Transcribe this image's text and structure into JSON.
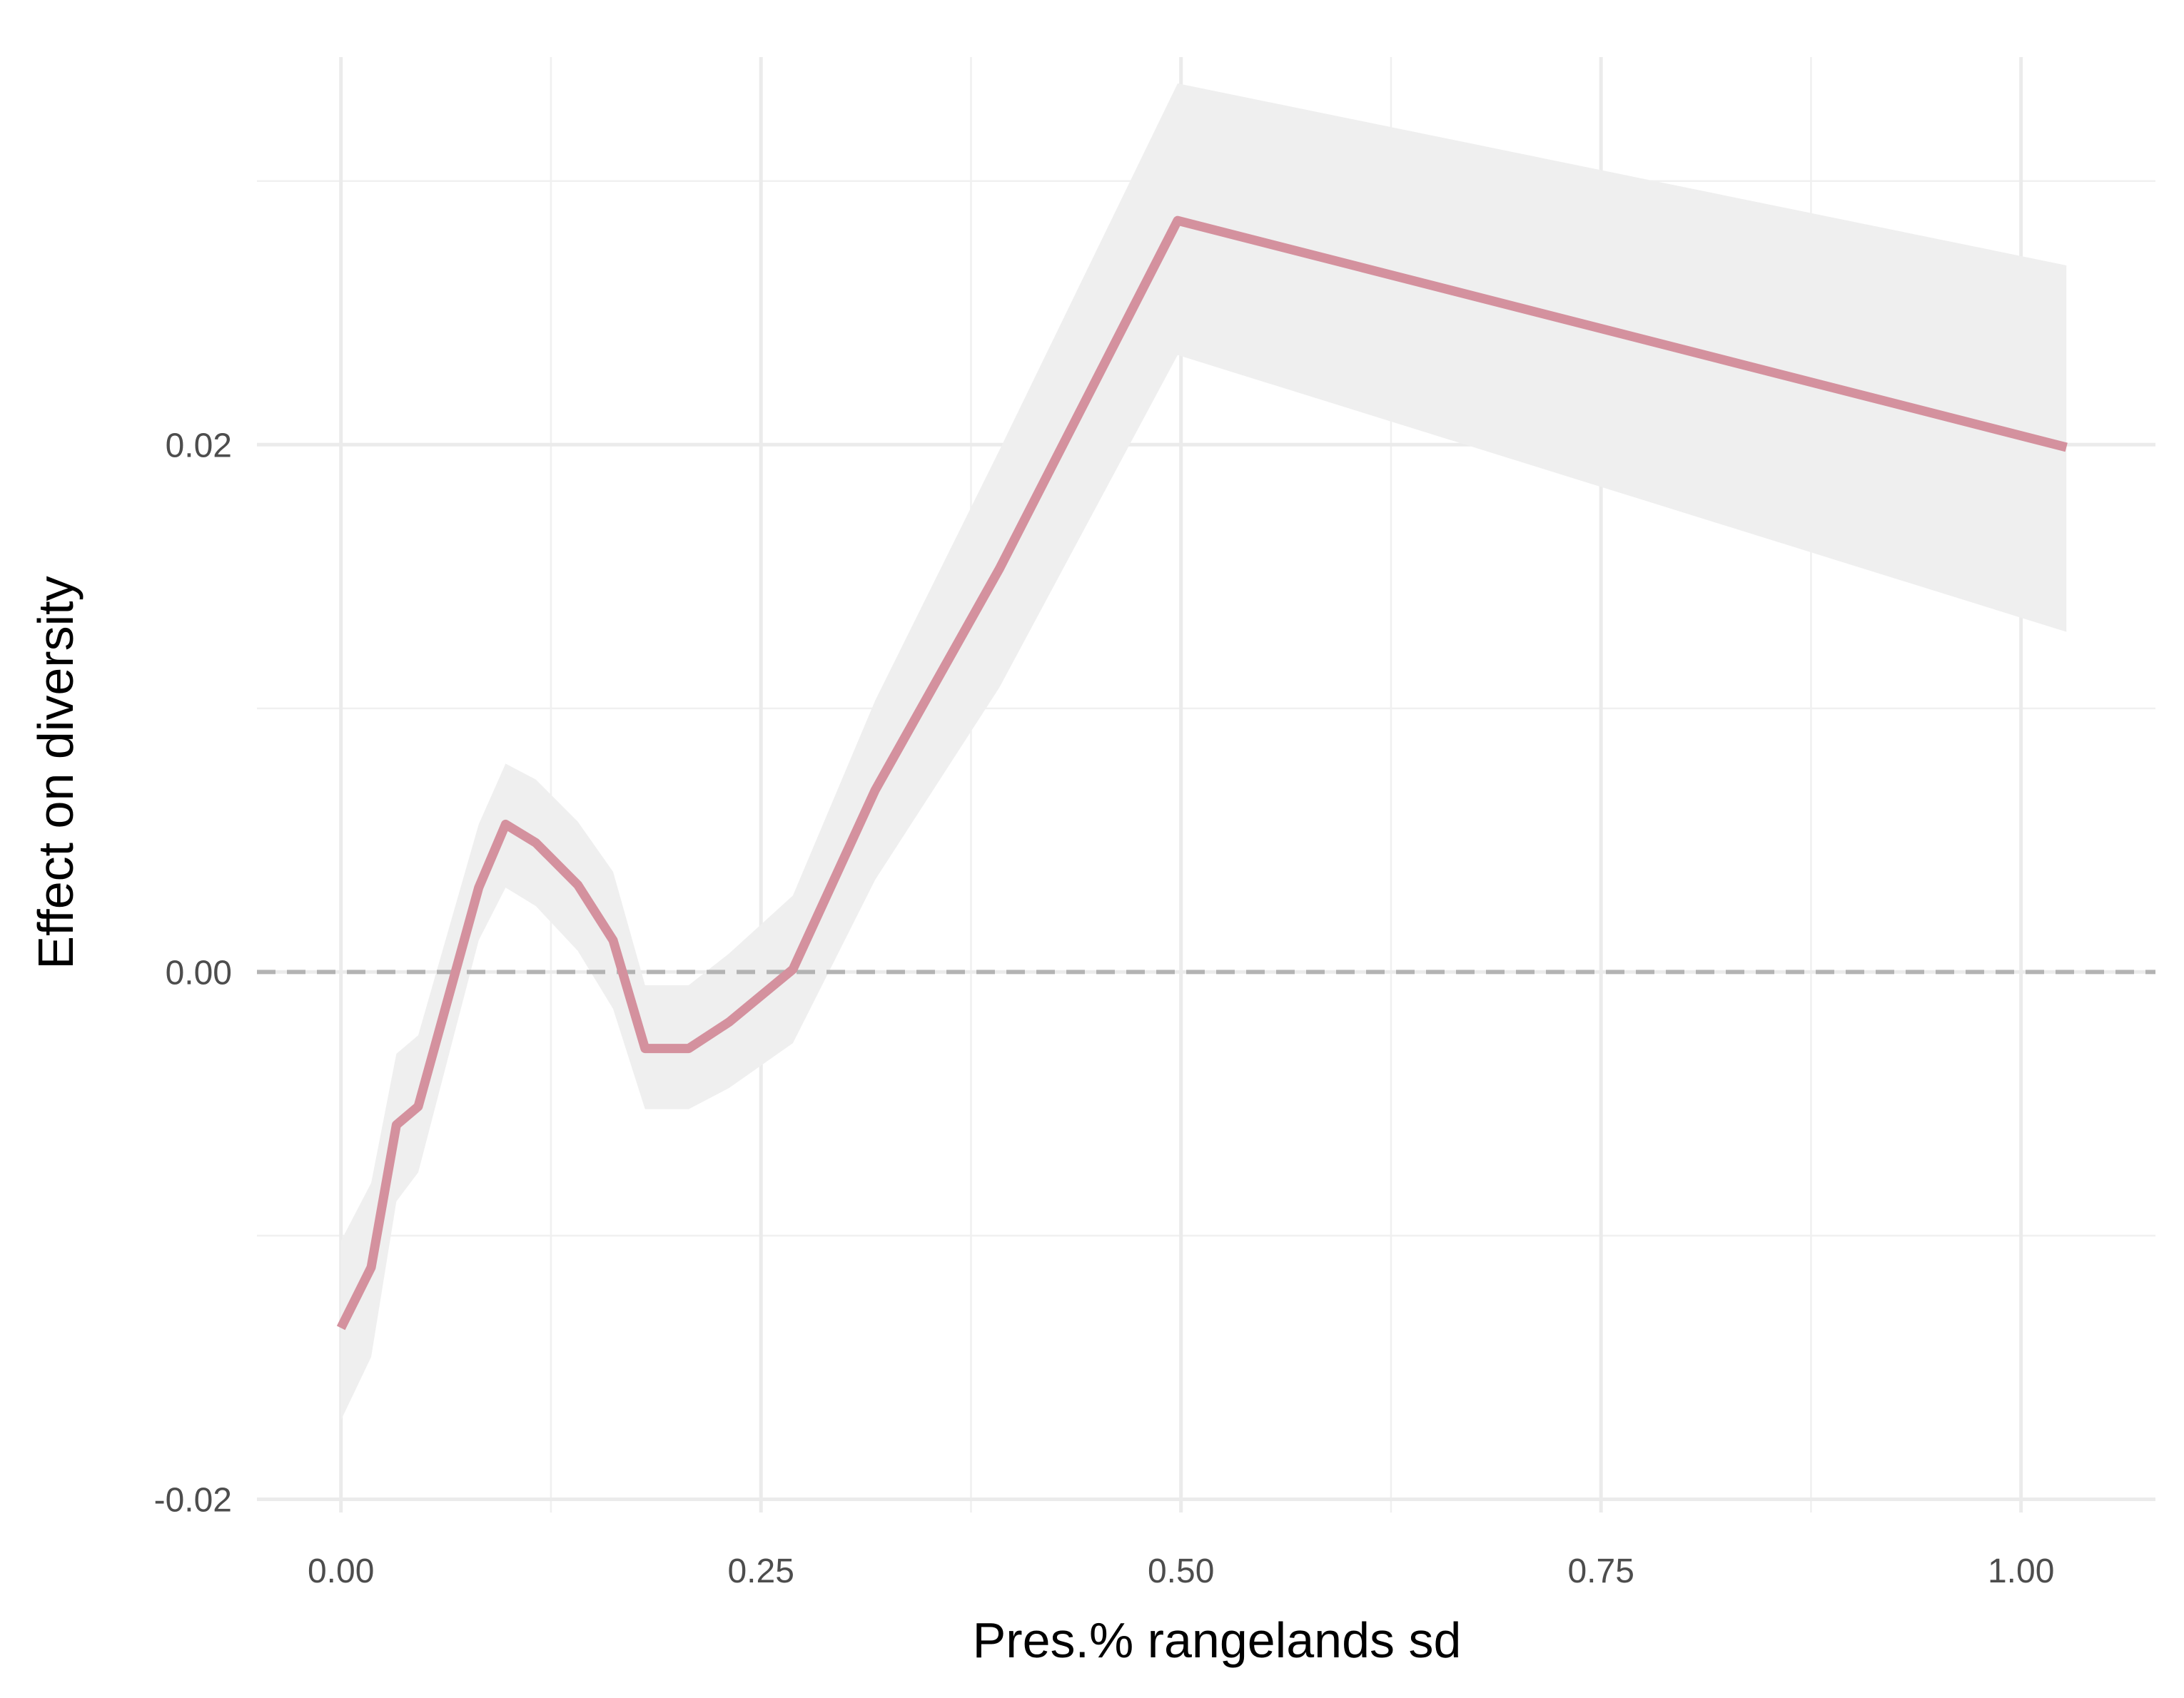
{
  "chart_data": {
    "type": "line",
    "title": "",
    "xlabel": "Pres.% rangelands sd",
    "ylabel": "Effect on diversity",
    "xlim": [
      -0.05,
      1.08
    ],
    "ylim": [
      -0.0205,
      0.0347
    ],
    "x_ticks": [
      0.0,
      0.25,
      0.5,
      0.75,
      1.0
    ],
    "x_tick_labels": [
      "0.00",
      "0.25",
      "0.50",
      "0.75",
      "1.00"
    ],
    "x_minor_ticks": [
      0.125,
      0.375,
      0.625,
      0.875
    ],
    "y_ticks": [
      -0.02,
      0.0,
      0.02
    ],
    "y_tick_labels": [
      "-0.02",
      "0.00",
      "0.02"
    ],
    "y_minor_ticks": [
      -0.01,
      0.01,
      0.03
    ],
    "grid": true,
    "legend": "none",
    "reference_line": {
      "y": 0,
      "style": "dashed",
      "color": "#b3b3b3"
    },
    "series": [
      {
        "color": "#d4919e",
        "ribbon_color": "#efefef",
        "x": [
          0.0,
          0.018,
          0.033,
          0.046,
          0.082,
          0.098,
          0.116,
          0.141,
          0.162,
          0.181,
          0.207,
          0.231,
          0.269,
          0.318,
          0.392,
          0.498,
          1.027
        ],
        "y": [
          -0.0135,
          -0.0112,
          -0.0058,
          -0.0051,
          0.0032,
          0.0056,
          0.0049,
          0.0033,
          0.0012,
          -0.0029,
          -0.0029,
          -0.0019,
          0.0001,
          0.0069,
          0.0153,
          0.0285,
          0.0199
        ],
        "lower": [
          -0.017,
          -0.0146,
          -0.0087,
          -0.0076,
          0.0012,
          0.0032,
          0.0025,
          0.0008,
          -0.0014,
          -0.0052,
          -0.0052,
          -0.0044,
          -0.0027,
          0.0035,
          0.0108,
          0.0234,
          0.0129
        ],
        "upper": [
          -0.0102,
          -0.008,
          -0.0031,
          -0.0024,
          0.0056,
          0.0079,
          0.0073,
          0.0057,
          0.0038,
          -0.0005,
          -0.0005,
          0.0007,
          0.0029,
          0.0103,
          0.0198,
          0.0337,
          0.0268
        ]
      }
    ]
  }
}
